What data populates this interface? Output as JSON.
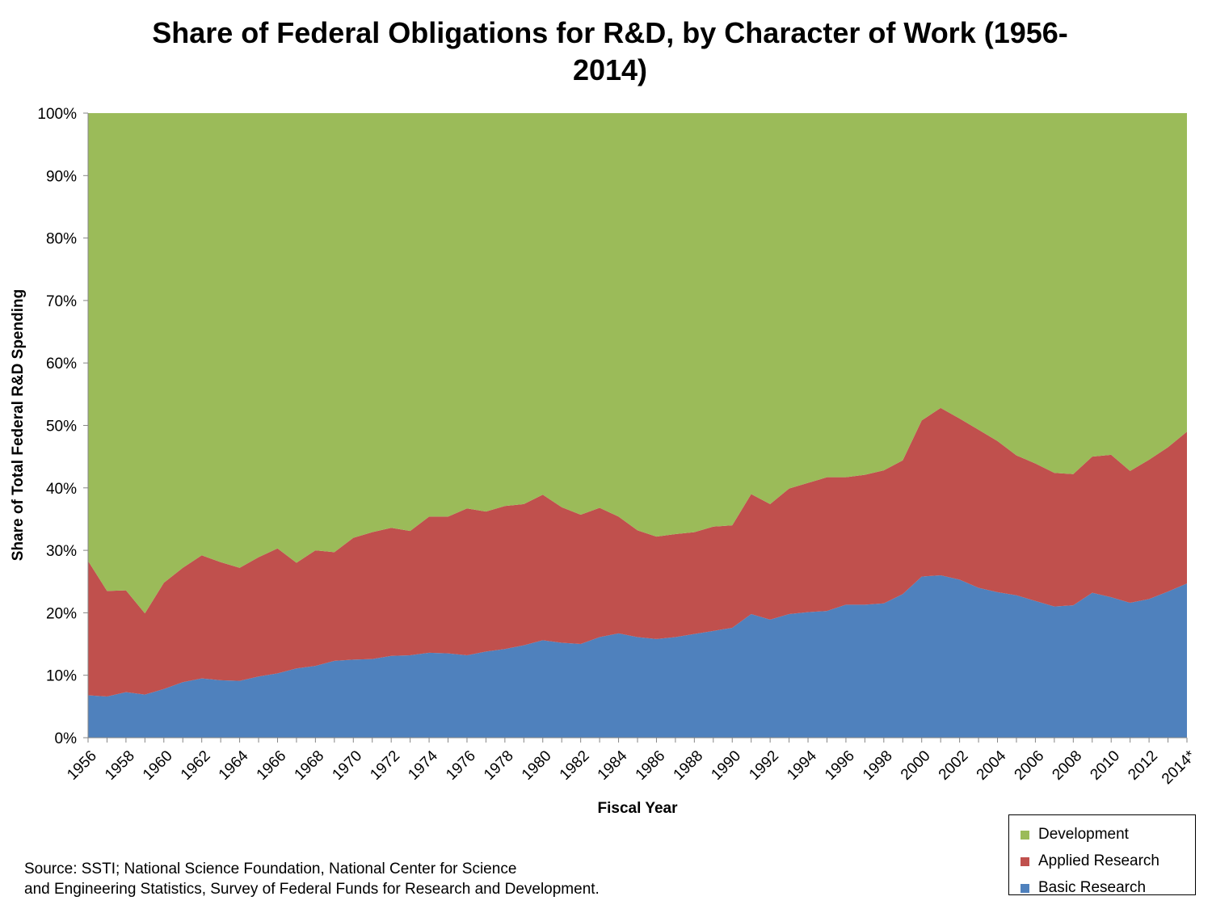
{
  "chart_data": {
    "type": "area",
    "stacked": true,
    "title": "Share of Federal Obligations for R&D, by Character of Work (1956-2014)",
    "xlabel": "Fiscal Year",
    "ylabel": "Share of Total Federal R&D Spending",
    "ylim": [
      0,
      100
    ],
    "yticks": [
      "0%",
      "10%",
      "20%",
      "30%",
      "40%",
      "50%",
      "60%",
      "70%",
      "80%",
      "90%",
      "100%"
    ],
    "grid": false,
    "legend_position": "bottom-right",
    "x": [
      "1956",
      "1957",
      "1958",
      "1959",
      "1960",
      "1961",
      "1962",
      "1963",
      "1964",
      "1965",
      "1966",
      "1967",
      "1968",
      "1969",
      "1970",
      "1971",
      "1972",
      "1973",
      "1974",
      "1975",
      "1976",
      "1977",
      "1978",
      "1979",
      "1980",
      "1981",
      "1982",
      "1983",
      "1984",
      "1985",
      "1986",
      "1987",
      "1988",
      "1989",
      "1990",
      "1991",
      "1992",
      "1993",
      "1994",
      "1995",
      "1996",
      "1997",
      "1998",
      "1999",
      "2000",
      "2001",
      "2002",
      "2003",
      "2004",
      "2005",
      "2006",
      "2007",
      "2008",
      "2009",
      "2010",
      "2011",
      "2012",
      "2013",
      "2014*"
    ],
    "x_tick_labels": [
      "1956",
      "1958",
      "1960",
      "1962",
      "1964",
      "1966",
      "1968",
      "1970",
      "1972",
      "1974",
      "1976",
      "1978",
      "1980",
      "1982",
      "1984",
      "1986",
      "1988",
      "1990",
      "1992",
      "1994",
      "1996",
      "1998",
      "2000",
      "2002",
      "2004",
      "2006",
      "2008",
      "2010",
      "2012",
      "2014*"
    ],
    "series": [
      {
        "name": "Basic Research",
        "color": "#4F81BD",
        "values": [
          6.8,
          6.6,
          7.3,
          6.9,
          7.8,
          8.9,
          9.5,
          9.2,
          9.1,
          9.8,
          10.3,
          11.1,
          11.5,
          12.3,
          12.5,
          12.6,
          13.1,
          13.2,
          13.6,
          13.5,
          13.2,
          13.8,
          14.2,
          14.8,
          15.6,
          15.2,
          15.0,
          16.1,
          16.7,
          16.1,
          15.8,
          16.1,
          16.6,
          17.1,
          17.6,
          19.8,
          18.9,
          19.8,
          20.1,
          20.3,
          21.3,
          21.3,
          21.5,
          23.0,
          25.8,
          26.0,
          25.3,
          24.0,
          23.3,
          22.8,
          21.9,
          21.0,
          21.2,
          23.2,
          22.5,
          21.6,
          22.2,
          23.4,
          24.7
        ]
      },
      {
        "name": "Applied Research",
        "color": "#C0504D",
        "values": [
          21.5,
          16.9,
          16.3,
          13.0,
          17.0,
          18.3,
          19.7,
          18.9,
          18.1,
          19.1,
          20.0,
          16.9,
          18.5,
          17.4,
          19.5,
          20.3,
          20.5,
          19.9,
          21.8,
          21.9,
          23.5,
          22.4,
          22.9,
          22.6,
          23.3,
          21.7,
          20.7,
          20.7,
          18.7,
          17.1,
          16.4,
          16.5,
          16.3,
          16.7,
          16.4,
          19.2,
          18.5,
          20.1,
          20.7,
          21.4,
          20.4,
          20.8,
          21.3,
          21.4,
          25.0,
          26.8,
          25.8,
          25.3,
          24.2,
          22.4,
          22.0,
          21.4,
          21.0,
          21.8,
          22.8,
          21.1,
          22.3,
          23.1,
          24.3
        ]
      },
      {
        "name": "Development",
        "color": "#9BBB59",
        "values": [
          71.7,
          76.5,
          76.4,
          80.1,
          75.2,
          72.8,
          70.8,
          71.9,
          72.8,
          71.1,
          69.7,
          72.0,
          70.0,
          70.3,
          68.0,
          67.1,
          66.4,
          66.9,
          64.6,
          64.6,
          63.3,
          63.8,
          62.9,
          62.6,
          61.1,
          63.1,
          64.3,
          63.2,
          64.6,
          66.8,
          67.8,
          67.4,
          67.1,
          66.2,
          66.0,
          61.0,
          62.6,
          60.1,
          59.2,
          58.3,
          58.3,
          57.9,
          57.2,
          55.6,
          49.2,
          47.2,
          48.9,
          50.7,
          52.5,
          54.8,
          56.1,
          57.6,
          57.8,
          55.0,
          54.7,
          57.3,
          55.5,
          53.5,
          51.0
        ]
      }
    ],
    "source_note": [
      "Source: SSTI; National Science Foundation, National Center for Science",
      "and Engineering Statistics, Survey of Federal Funds for Research and Development."
    ]
  },
  "legend": {
    "items": [
      {
        "label": "Development",
        "color": "#9BBB59"
      },
      {
        "label": "Applied Research",
        "color": "#C0504D"
      },
      {
        "label": "Basic Research",
        "color": "#4F81BD"
      }
    ]
  }
}
